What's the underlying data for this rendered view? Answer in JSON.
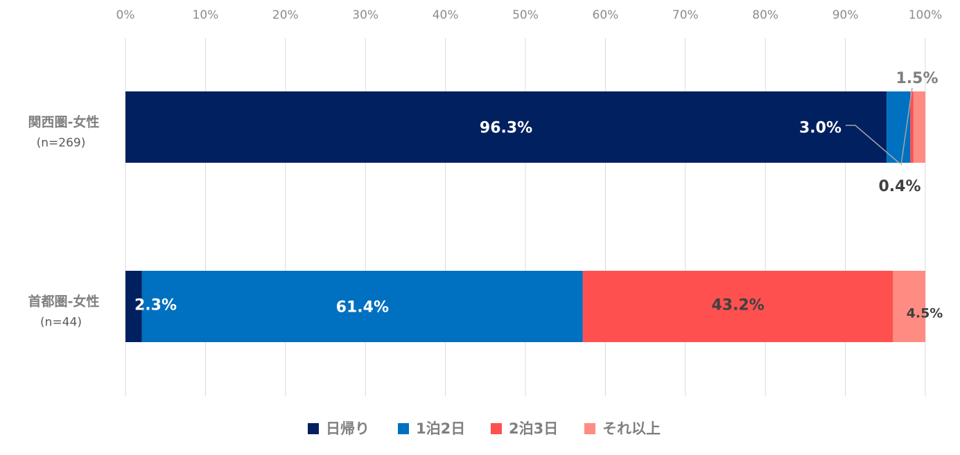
{
  "chart_data": {
    "type": "bar",
    "orientation": "horizontal",
    "stacked": "percent",
    "categories": [
      {
        "label": "関西圏-女性",
        "sub": "(n=269)"
      },
      {
        "label": "首都圏-女性",
        "sub": "(n=44)"
      }
    ],
    "series": [
      {
        "name": "日帰り",
        "color": "#002060",
        "values": [
          96.3,
          2.3
        ],
        "labels": [
          "96.3%",
          "2.3%"
        ]
      },
      {
        "name": "1泊2日",
        "color": "#0070C0",
        "values": [
          3.0,
          61.4
        ],
        "labels": [
          "3.0%",
          "61.4%"
        ]
      },
      {
        "name": "2泊3日",
        "color": "#FF5050",
        "values": [
          0.4,
          43.2
        ],
        "labels": [
          "0.4%",
          "43.2%"
        ]
      },
      {
        "name": "それ以上",
        "color": "#FF8C82",
        "values": [
          1.5,
          4.5
        ],
        "labels": [
          "1.5%",
          "4.5%"
        ]
      }
    ],
    "xlim": [
      0,
      100
    ],
    "xticks": [
      "0%",
      "10%",
      "20%",
      "30%",
      "40%",
      "50%",
      "60%",
      "70%",
      "80%",
      "90%",
      "100%"
    ],
    "grid": true,
    "legend_position": "bottom"
  }
}
